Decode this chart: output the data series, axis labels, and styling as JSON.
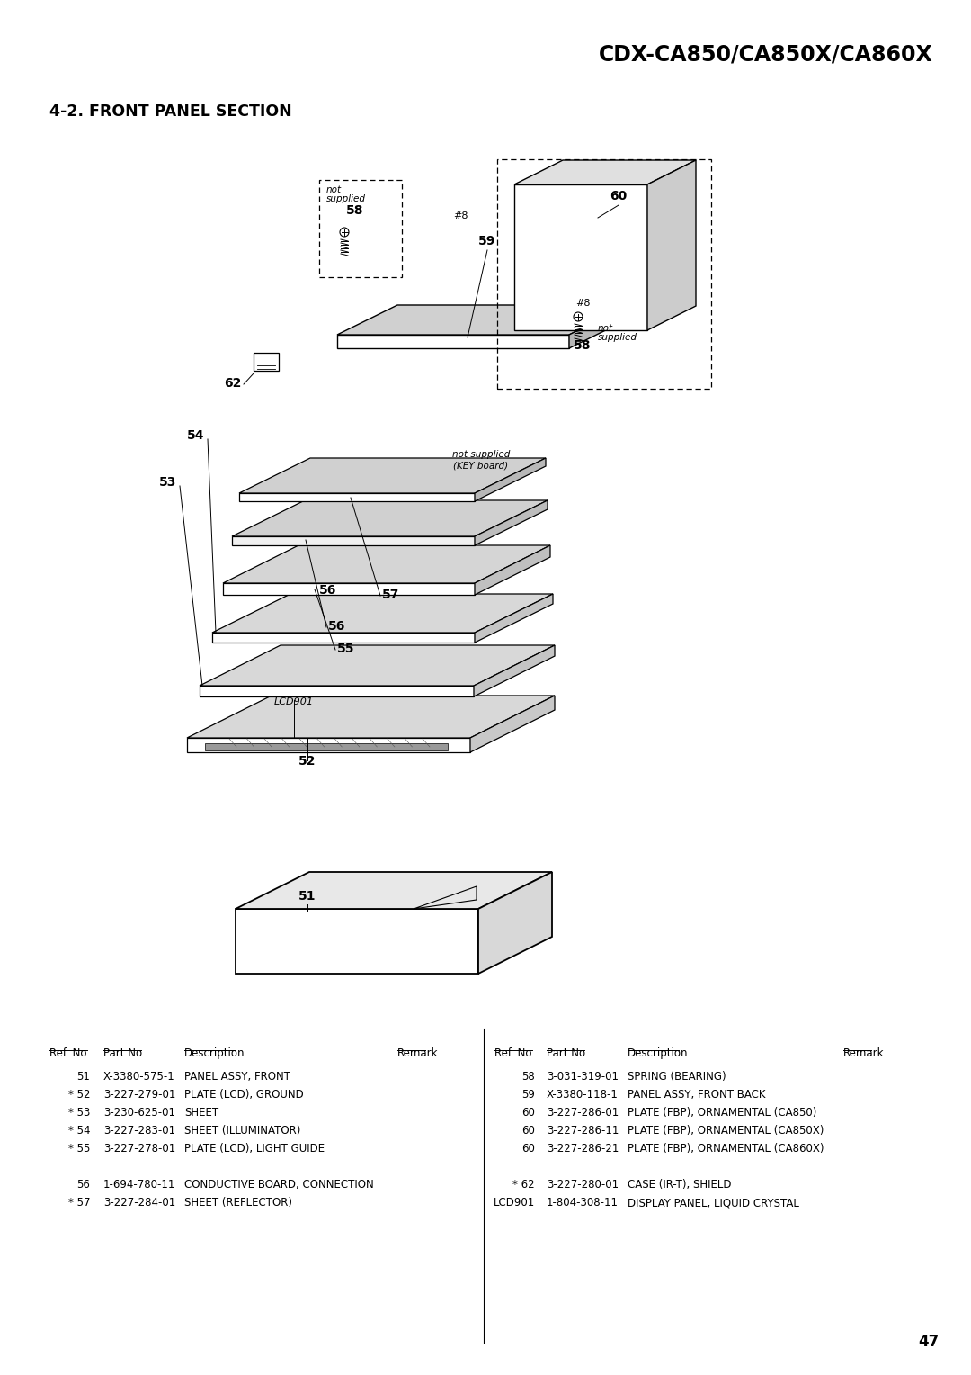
{
  "title": "CDX-CA850/CA850X/CA860X",
  "section_title": "4-2. FRONT PANEL SECTION",
  "page_number": "47",
  "bg_color": "#ffffff",
  "text_color": "#000000",
  "table_headers_left": [
    "Ref. No.",
    "Part No.",
    "Description",
    "Remark"
  ],
  "table_headers_right": [
    "Ref. No.",
    "Part No.",
    "Description",
    "Remark"
  ],
  "table_rows_left": [
    [
      "51",
      "X-3380-575-1",
      "PANEL ASSY, FRONT",
      ""
    ],
    [
      "* 52",
      "3-227-279-01",
      "PLATE (LCD), GROUND",
      ""
    ],
    [
      "* 53",
      "3-230-625-01",
      "SHEET",
      ""
    ],
    [
      "* 54",
      "3-227-283-01",
      "SHEET (ILLUMINATOR)",
      ""
    ],
    [
      "* 55",
      "3-227-278-01",
      "PLATE (LCD), LIGHT GUIDE",
      ""
    ],
    [
      "",
      "",
      "",
      ""
    ],
    [
      "56",
      "1-694-780-11",
      "CONDUCTIVE BOARD, CONNECTION",
      ""
    ],
    [
      "* 57",
      "3-227-284-01",
      "SHEET (REFLECTOR)",
      ""
    ]
  ],
  "table_rows_right": [
    [
      "58",
      "3-031-319-01",
      "SPRING (BEARING)",
      ""
    ],
    [
      "59",
      "X-3380-118-1",
      "PANEL ASSY, FRONT BACK",
      ""
    ],
    [
      "60",
      "3-227-286-01",
      "PLATE (FBP), ORNAMENTAL (CA850)",
      ""
    ],
    [
      "60",
      "3-227-286-11",
      "PLATE (FBP), ORNAMENTAL (CA850X)",
      ""
    ],
    [
      "60",
      "3-227-286-21",
      "PLATE (FBP), ORNAMENTAL (CA860X)",
      ""
    ],
    [
      "",
      "",
      "",
      ""
    ],
    [
      "* 62",
      "3-227-280-01",
      "CASE (IR-T), SHIELD",
      ""
    ],
    [
      "LCD901",
      "1-804-308-11",
      "DISPLAY PANEL, LIQUID CRYSTAL",
      ""
    ]
  ]
}
